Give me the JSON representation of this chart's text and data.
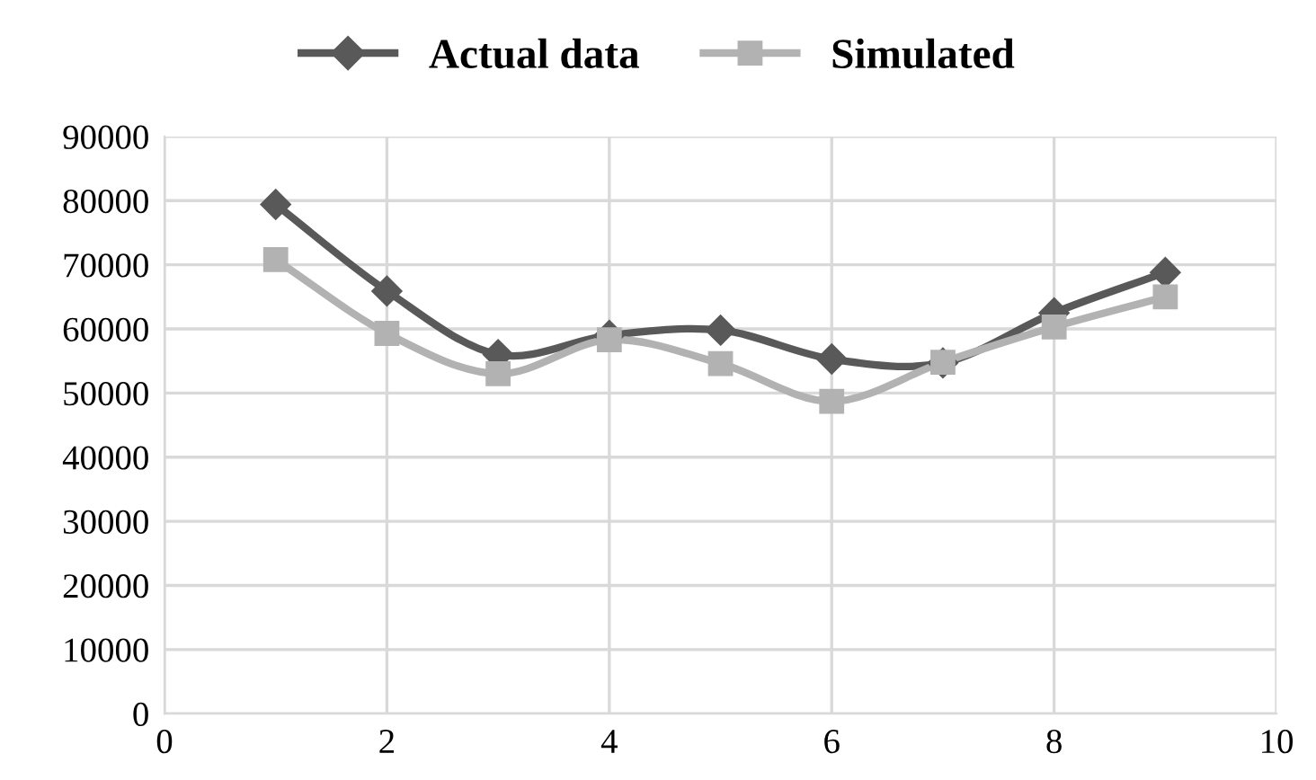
{
  "chart_data": {
    "type": "line",
    "x": [
      1,
      2,
      3,
      4,
      5,
      6,
      7,
      8,
      9
    ],
    "series": [
      {
        "name": "Actual data",
        "color": "#595959",
        "marker": "diamond",
        "values": [
          79400,
          65900,
          56000,
          59000,
          59800,
          55300,
          54700,
          62500,
          68800
        ]
      },
      {
        "name": "Simulated",
        "color": "#b2b2b2",
        "marker": "square",
        "values": [
          70800,
          59300,
          53000,
          58300,
          54600,
          48700,
          54800,
          60300,
          65000
        ]
      }
    ],
    "xlim": [
      0,
      10
    ],
    "xticks": [
      0,
      2,
      4,
      6,
      8,
      10
    ],
    "ylim": [
      0,
      90000
    ],
    "yticks": [
      0,
      10000,
      20000,
      30000,
      40000,
      50000,
      60000,
      70000,
      80000,
      90000
    ],
    "grid": true,
    "legend": "top",
    "line_style": "solid"
  }
}
